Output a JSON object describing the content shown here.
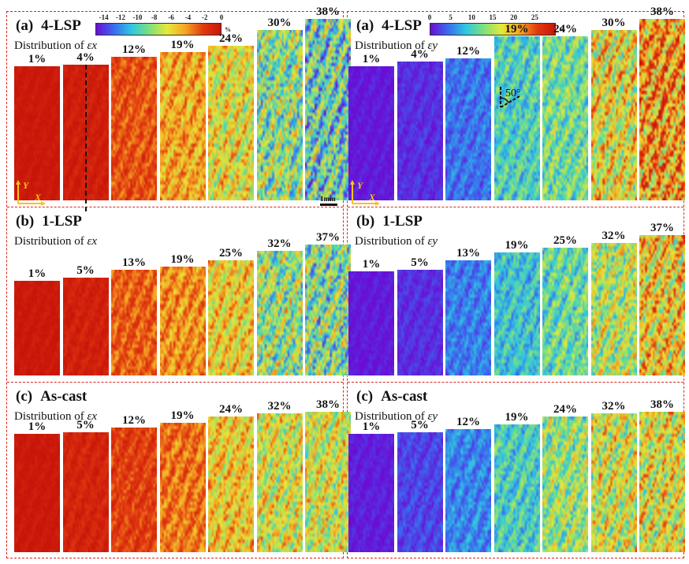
{
  "figure": {
    "left": {
      "strain_component": "Ex",
      "colorbar": {
        "ticks": [
          "-14",
          "-12",
          "-10",
          "-8",
          "-6",
          "-4",
          "-2",
          "0"
        ],
        "unit": "%",
        "range": [
          -15,
          0
        ],
        "colormap": [
          "#6a0dd6",
          "#3a6cf0",
          "#2fc8e0",
          "#7fe07a",
          "#e6e83a",
          "#f5a623",
          "#e23a10",
          "#c8150a"
        ]
      },
      "panels": [
        {
          "letter": "(a)",
          "title": "4-LSP",
          "distribution_label": "Distribution of ",
          "symbol": "εx",
          "strains": [
            "1%",
            "4%",
            "12%",
            "19%",
            "24%",
            "30%",
            "38%"
          ],
          "mean_levels": [
            0.02,
            0.05,
            0.22,
            0.4,
            0.55,
            0.75,
            0.85
          ],
          "annotations": {
            "axes": {
              "y": "Y",
              "x": "X"
            },
            "scale_bar": "1mm"
          }
        },
        {
          "letter": "(b)",
          "title": "1-LSP",
          "distribution_label": "Distribution of ",
          "symbol": "εx",
          "strains": [
            "1%",
            "5%",
            "13%",
            "19%",
            "25%",
            "32%",
            "37%"
          ],
          "mean_levels": [
            0.02,
            0.06,
            0.25,
            0.35,
            0.5,
            0.72,
            0.78
          ]
        },
        {
          "letter": "(c)",
          "title": "As-cast",
          "distribution_label": "Distribution of ",
          "symbol": "εx",
          "strains": [
            "1%",
            "5%",
            "12%",
            "19%",
            "24%",
            "32%",
            "38%"
          ],
          "mean_levels": [
            0.02,
            0.08,
            0.18,
            0.3,
            0.48,
            0.58,
            0.6
          ]
        }
      ]
    },
    "right": {
      "strain_component": "Ey",
      "colorbar": {
        "ticks": [
          "0",
          "5",
          "10",
          "15",
          "20",
          "25"
        ],
        "unit": "%",
        "range": [
          0,
          30
        ],
        "colormap": [
          "#6a0dd6",
          "#3a6cf0",
          "#2fc8e0",
          "#7fe07a",
          "#e6e83a",
          "#f5a623",
          "#e23a10",
          "#c8150a"
        ]
      },
      "panels": [
        {
          "letter": "(a)",
          "title": "4-LSP",
          "distribution_label": "Distribution of ",
          "symbol": "εy",
          "strains": [
            "1%",
            "4%",
            "12%",
            "19%",
            "24%",
            "30%",
            "38%"
          ],
          "mean_levels": [
            0.02,
            0.06,
            0.18,
            0.4,
            0.48,
            0.7,
            0.85
          ],
          "annotations": {
            "axes": {
              "y": "Y",
              "x": "X"
            },
            "angle": "50°"
          }
        },
        {
          "letter": "(b)",
          "title": "1-LSP",
          "distribution_label": "Distribution of ",
          "symbol": "εy",
          "strains": [
            "1%",
            "5%",
            "13%",
            "19%",
            "25%",
            "32%",
            "37%"
          ],
          "mean_levels": [
            0.02,
            0.06,
            0.2,
            0.35,
            0.45,
            0.6,
            0.75
          ]
        },
        {
          "letter": "(c)",
          "title": "As-cast",
          "distribution_label": "Distribution of ",
          "symbol": "εy",
          "strains": [
            "1%",
            "5%",
            "12%",
            "19%",
            "24%",
            "32%",
            "38%"
          ],
          "mean_levels": [
            0.03,
            0.1,
            0.22,
            0.38,
            0.55,
            0.65,
            0.68
          ]
        }
      ]
    }
  }
}
